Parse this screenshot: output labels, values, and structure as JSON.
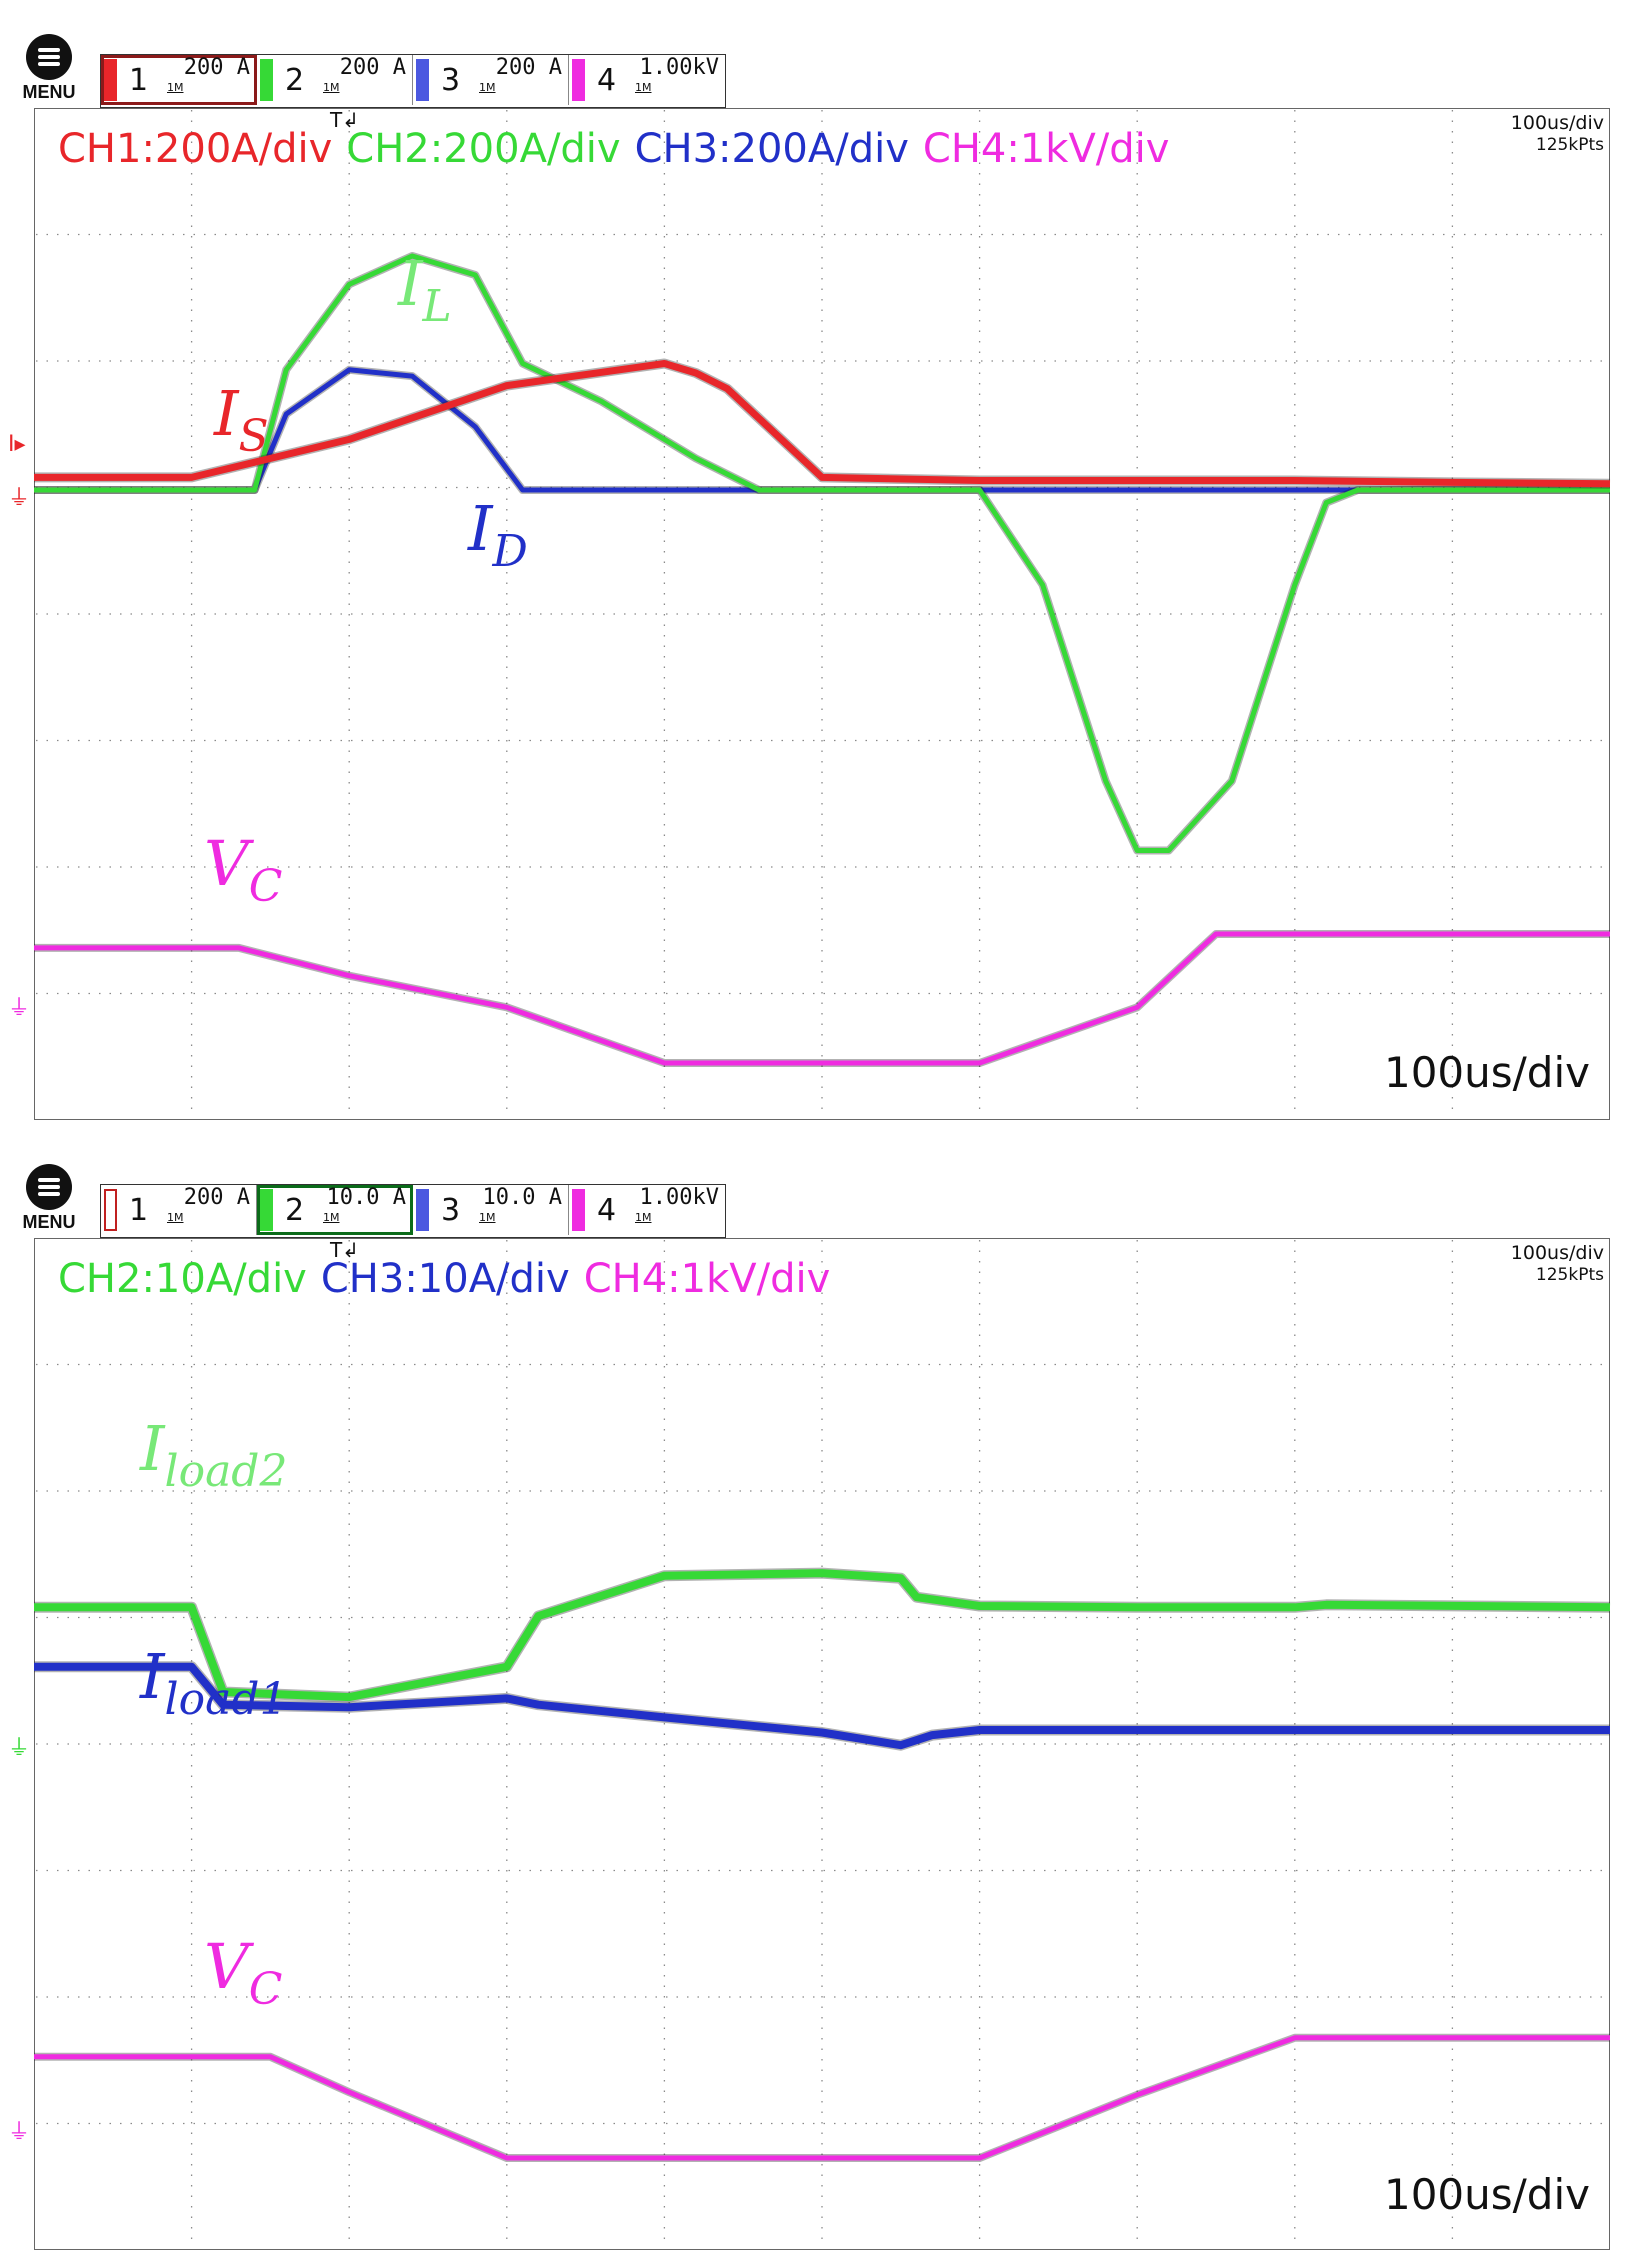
{
  "colors": {
    "ch1": "#e8262a",
    "ch2": "#36d936",
    "ch3": "#2130c8",
    "ch4": "#ef2be0",
    "grid": "#8a8a8a"
  },
  "panels": [
    {
      "menu_label": "MENU",
      "channels": [
        {
          "num": "1",
          "scale": "200 A",
          "imp": "1M"
        },
        {
          "num": "2",
          "scale": "200 A",
          "imp": "1M"
        },
        {
          "num": "3",
          "scale": "200 A",
          "imp": "1M"
        },
        {
          "num": "4",
          "scale": "1.00kV",
          "imp": "1M"
        }
      ],
      "channel_labels": [
        "CH1:200A/div",
        "CH2:200A/div",
        "CH3:200A/div",
        "CH4:1kV/div"
      ],
      "timebase": "100us/div",
      "points": "125kPts",
      "corner_timebase": "100us/div",
      "trace_labels": {
        "is": "I",
        "is_sub": "S",
        "il": "I",
        "il_sub": "L",
        "id": "I",
        "id_sub": "D",
        "vc": "V",
        "vc_sub": "C"
      }
    },
    {
      "menu_label": "MENU",
      "channels": [
        {
          "num": "1",
          "scale": "200 A",
          "imp": "1M"
        },
        {
          "num": "2",
          "scale": "10.0 A",
          "imp": "1M"
        },
        {
          "num": "3",
          "scale": "10.0 A",
          "imp": "1M"
        },
        {
          "num": "4",
          "scale": "1.00kV",
          "imp": "1M"
        }
      ],
      "channel_labels": [
        "CH2:10A/div",
        "CH3:10A/div",
        "CH4:1kV/div"
      ],
      "timebase": "100us/div",
      "points": "125kPts",
      "corner_timebase": "100us/div",
      "trace_labels": {
        "il2": "I",
        "il2_sub": "load2",
        "il1": "I",
        "il1_sub": "load1",
        "vc": "V",
        "vc_sub": "C"
      }
    }
  ],
  "chart_data": [
    {
      "type": "line",
      "x_unit": "us",
      "x_range": [
        0,
        1000
      ],
      "series": [
        {
          "name": "I_S",
          "unit": "A",
          "x": [
            0,
            100,
            200,
            300,
            400,
            420,
            440,
            500,
            600,
            700,
            800,
            900,
            1000
          ],
          "y": [
            20,
            20,
            80,
            165,
            200,
            185,
            160,
            20,
            15,
            15,
            15,
            12,
            10
          ]
        },
        {
          "name": "I_L",
          "unit": "A",
          "x": [
            0,
            120,
            140,
            160,
            200,
            240,
            280,
            310,
            360,
            420,
            460,
            500,
            600,
            640,
            680,
            700,
            720,
            760,
            800,
            820,
            840,
            880,
            1000
          ],
          "y": [
            0,
            0,
            0,
            190,
            325,
            370,
            340,
            200,
            140,
            50,
            0,
            0,
            0,
            -150,
            -460,
            -570,
            -570,
            -460,
            -150,
            -20,
            0,
            0,
            0
          ]
        },
        {
          "name": "I_D",
          "unit": "A",
          "x": [
            0,
            120,
            140,
            160,
            200,
            240,
            280,
            310,
            320,
            400,
            500,
            600,
            700,
            800,
            1000
          ],
          "y": [
            0,
            0,
            0,
            120,
            190,
            180,
            100,
            0,
            0,
            0,
            0,
            0,
            0,
            0,
            0
          ]
        },
        {
          "name": "V_C",
          "unit": "V",
          "x": [
            0,
            100,
            130,
            200,
            300,
            400,
            500,
            550,
            600,
            700,
            750,
            800,
            1000
          ],
          "y": [
            -3530,
            -3530,
            -3530,
            -3750,
            -4000,
            -4440,
            -4440,
            -4440,
            -4440,
            -4000,
            -3420,
            -3420,
            -3420
          ]
        }
      ]
    },
    {
      "type": "line",
      "x_unit": "us",
      "x_range": [
        0,
        1000
      ],
      "series": [
        {
          "name": "I_load2",
          "unit": "A",
          "x": [
            0,
            100,
            120,
            200,
            300,
            320,
            400,
            500,
            550,
            560,
            600,
            700,
            800,
            820,
            1000
          ],
          "y": [
            14.7,
            14.7,
            8.0,
            7.6,
            10.0,
            14.0,
            17.2,
            17.4,
            17.0,
            15.5,
            14.8,
            14.7,
            14.7,
            14.9,
            14.7
          ]
        },
        {
          "name": "I_load1",
          "unit": "A",
          "x": [
            0,
            100,
            120,
            200,
            300,
            320,
            400,
            500,
            550,
            570,
            600,
            700,
            800,
            1000
          ],
          "y": [
            10.0,
            10.0,
            7.0,
            6.8,
            7.5,
            7.0,
            6.0,
            4.8,
            3.8,
            4.6,
            5.0,
            5.0,
            5.0,
            5.0
          ]
        },
        {
          "name": "V_C",
          "unit": "V",
          "x": [
            0,
            100,
            150,
            200,
            300,
            400,
            500,
            550,
            600,
            700,
            800,
            1000
          ],
          "y": [
            -3400,
            -3400,
            -3400,
            -3680,
            -4200,
            -4200,
            -4200,
            -4200,
            -4200,
            -3700,
            -3250,
            -3250
          ]
        }
      ]
    }
  ]
}
